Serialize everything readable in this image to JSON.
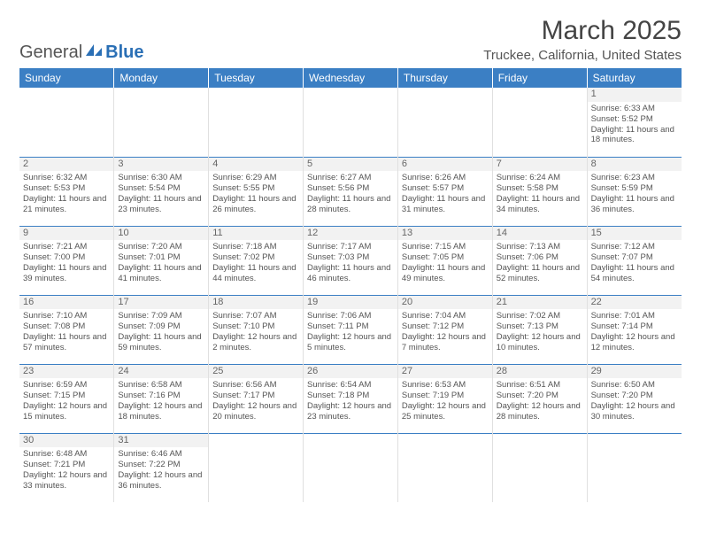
{
  "logo": {
    "text1": "General",
    "text2": "Blue"
  },
  "title": "March 2025",
  "location": "Truckee, California, United States",
  "colors": {
    "header_bg": "#3b7fc4",
    "header_text": "#ffffff",
    "row_border": "#3b7fc4",
    "cell_border": "#e0e0e0",
    "daynum_bg": "#f2f2f2",
    "body_text": "#555555",
    "logo_accent": "#2a6fb5"
  },
  "daysOfWeek": [
    "Sunday",
    "Monday",
    "Tuesday",
    "Wednesday",
    "Thursday",
    "Friday",
    "Saturday"
  ],
  "weeks": [
    [
      null,
      null,
      null,
      null,
      null,
      null,
      {
        "n": "1",
        "sr": "6:33 AM",
        "ss": "5:52 PM",
        "dl": "11 hours and 18 minutes."
      }
    ],
    [
      {
        "n": "2",
        "sr": "6:32 AM",
        "ss": "5:53 PM",
        "dl": "11 hours and 21 minutes."
      },
      {
        "n": "3",
        "sr": "6:30 AM",
        "ss": "5:54 PM",
        "dl": "11 hours and 23 minutes."
      },
      {
        "n": "4",
        "sr": "6:29 AM",
        "ss": "5:55 PM",
        "dl": "11 hours and 26 minutes."
      },
      {
        "n": "5",
        "sr": "6:27 AM",
        "ss": "5:56 PM",
        "dl": "11 hours and 28 minutes."
      },
      {
        "n": "6",
        "sr": "6:26 AM",
        "ss": "5:57 PM",
        "dl": "11 hours and 31 minutes."
      },
      {
        "n": "7",
        "sr": "6:24 AM",
        "ss": "5:58 PM",
        "dl": "11 hours and 34 minutes."
      },
      {
        "n": "8",
        "sr": "6:23 AM",
        "ss": "5:59 PM",
        "dl": "11 hours and 36 minutes."
      }
    ],
    [
      {
        "n": "9",
        "sr": "7:21 AM",
        "ss": "7:00 PM",
        "dl": "11 hours and 39 minutes."
      },
      {
        "n": "10",
        "sr": "7:20 AM",
        "ss": "7:01 PM",
        "dl": "11 hours and 41 minutes."
      },
      {
        "n": "11",
        "sr": "7:18 AM",
        "ss": "7:02 PM",
        "dl": "11 hours and 44 minutes."
      },
      {
        "n": "12",
        "sr": "7:17 AM",
        "ss": "7:03 PM",
        "dl": "11 hours and 46 minutes."
      },
      {
        "n": "13",
        "sr": "7:15 AM",
        "ss": "7:05 PM",
        "dl": "11 hours and 49 minutes."
      },
      {
        "n": "14",
        "sr": "7:13 AM",
        "ss": "7:06 PM",
        "dl": "11 hours and 52 minutes."
      },
      {
        "n": "15",
        "sr": "7:12 AM",
        "ss": "7:07 PM",
        "dl": "11 hours and 54 minutes."
      }
    ],
    [
      {
        "n": "16",
        "sr": "7:10 AM",
        "ss": "7:08 PM",
        "dl": "11 hours and 57 minutes."
      },
      {
        "n": "17",
        "sr": "7:09 AM",
        "ss": "7:09 PM",
        "dl": "11 hours and 59 minutes."
      },
      {
        "n": "18",
        "sr": "7:07 AM",
        "ss": "7:10 PM",
        "dl": "12 hours and 2 minutes."
      },
      {
        "n": "19",
        "sr": "7:06 AM",
        "ss": "7:11 PM",
        "dl": "12 hours and 5 minutes."
      },
      {
        "n": "20",
        "sr": "7:04 AM",
        "ss": "7:12 PM",
        "dl": "12 hours and 7 minutes."
      },
      {
        "n": "21",
        "sr": "7:02 AM",
        "ss": "7:13 PM",
        "dl": "12 hours and 10 minutes."
      },
      {
        "n": "22",
        "sr": "7:01 AM",
        "ss": "7:14 PM",
        "dl": "12 hours and 12 minutes."
      }
    ],
    [
      {
        "n": "23",
        "sr": "6:59 AM",
        "ss": "7:15 PM",
        "dl": "12 hours and 15 minutes."
      },
      {
        "n": "24",
        "sr": "6:58 AM",
        "ss": "7:16 PM",
        "dl": "12 hours and 18 minutes."
      },
      {
        "n": "25",
        "sr": "6:56 AM",
        "ss": "7:17 PM",
        "dl": "12 hours and 20 minutes."
      },
      {
        "n": "26",
        "sr": "6:54 AM",
        "ss": "7:18 PM",
        "dl": "12 hours and 23 minutes."
      },
      {
        "n": "27",
        "sr": "6:53 AM",
        "ss": "7:19 PM",
        "dl": "12 hours and 25 minutes."
      },
      {
        "n": "28",
        "sr": "6:51 AM",
        "ss": "7:20 PM",
        "dl": "12 hours and 28 minutes."
      },
      {
        "n": "29",
        "sr": "6:50 AM",
        "ss": "7:20 PM",
        "dl": "12 hours and 30 minutes."
      }
    ],
    [
      {
        "n": "30",
        "sr": "6:48 AM",
        "ss": "7:21 PM",
        "dl": "12 hours and 33 minutes."
      },
      {
        "n": "31",
        "sr": "6:46 AM",
        "ss": "7:22 PM",
        "dl": "12 hours and 36 minutes."
      },
      null,
      null,
      null,
      null,
      null
    ]
  ],
  "labels": {
    "sunrise": "Sunrise: ",
    "sunset": "Sunset: ",
    "daylight": "Daylight: "
  }
}
